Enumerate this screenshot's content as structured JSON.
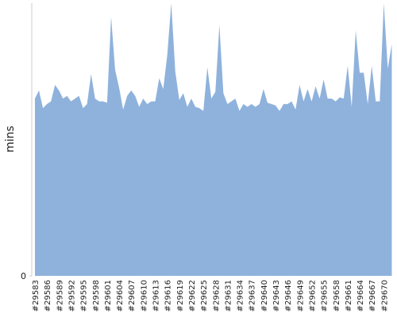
{
  "chart_data": {
    "type": "area",
    "y_label": "mins",
    "categories": [
      "#29583",
      null,
      null,
      "#29586",
      null,
      null,
      "#29589",
      null,
      null,
      "#29592",
      null,
      null,
      "#29595",
      null,
      null,
      "#29598",
      null,
      null,
      "#29601",
      null,
      null,
      "#29604",
      null,
      null,
      "#29607",
      null,
      null,
      "#29610",
      null,
      null,
      "#29613",
      null,
      null,
      "#29616",
      null,
      null,
      "#29619",
      null,
      null,
      "#29622",
      null,
      null,
      "#29625",
      null,
      null,
      "#29628",
      null,
      null,
      "#29631",
      null,
      null,
      "#29634",
      null,
      null,
      "#29637",
      null,
      null,
      "#29640",
      null,
      null,
      "#29643",
      null,
      null,
      "#29646",
      null,
      null,
      "#29649",
      null,
      null,
      "#29652",
      null,
      null,
      "#29655",
      null,
      null,
      "#29658",
      null,
      null,
      "#29661",
      null,
      null,
      "#29664",
      null,
      null,
      "#29667",
      null,
      null,
      "#29670",
      null,
      null
    ],
    "values": [
      65,
      68,
      61.5,
      63,
      64,
      70,
      68,
      65,
      66,
      64,
      65,
      66,
      61.5,
      63,
      74,
      65,
      64,
      64,
      63.5,
      95,
      75.5,
      69,
      61,
      66,
      68,
      66,
      62,
      65,
      63,
      64,
      64,
      72.5,
      68.5,
      81,
      100,
      75,
      64.5,
      67,
      62,
      65,
      62,
      61.5,
      60.5,
      76.5,
      65,
      67.5,
      92,
      67,
      63,
      64,
      65,
      60.5,
      63,
      62,
      63,
      62,
      63,
      68.5,
      63.5,
      63,
      62.5,
      60.5,
      63,
      63,
      64,
      61,
      70,
      64,
      68.5,
      64,
      69.5,
      65,
      72,
      65,
      65,
      64,
      65.5,
      65,
      77,
      62,
      90,
      74.5,
      74.5,
      63,
      77,
      64,
      64,
      100,
      76,
      85
    ],
    "color": "#8fb2dc",
    "ylim": [
      0,
      100
    ],
    "yticks": [
      0
    ]
  }
}
